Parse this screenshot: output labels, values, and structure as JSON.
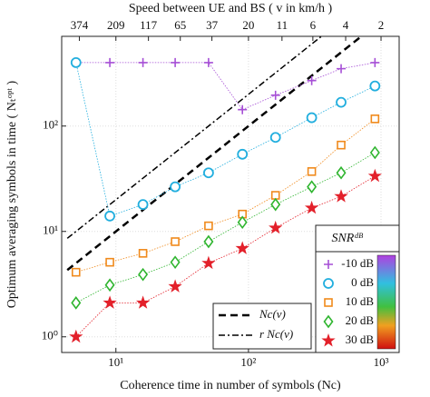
{
  "chart_data": {
    "type": "scatter",
    "xlabel": "Coherence time in number of symbols (Nc)",
    "ylabel": "Optimum averaging symbols in time ( Nₜᵒᵖᵗ )",
    "log_x": true,
    "log_y": true,
    "grid": true,
    "xlim": [
      3.9,
      1370
    ],
    "ylim": [
      0.71,
      710
    ],
    "xticks": [
      {
        "value": 10,
        "label": "10¹"
      },
      {
        "value": 100,
        "label": "10²"
      },
      {
        "value": 1000,
        "label": "10³"
      }
    ],
    "yticks": [
      {
        "value": 1,
        "label": "10⁰"
      },
      {
        "value": 10,
        "label": "10¹"
      },
      {
        "value": 100,
        "label": "10²"
      }
    ],
    "top_axis": {
      "label": "Speed between UE and BS ( v in km/h )",
      "ticks": [
        {
          "value": 5.3,
          "label": "374"
        },
        {
          "value": 10,
          "label": "209"
        },
        {
          "value": 17.6,
          "label": "117"
        },
        {
          "value": 30.6,
          "label": "65"
        },
        {
          "value": 53,
          "label": "37"
        },
        {
          "value": 100,
          "label": "20"
        },
        {
          "value": 179,
          "label": "11"
        },
        {
          "value": 306,
          "label": "6"
        },
        {
          "value": 541,
          "label": "4"
        },
        {
          "value": 1000,
          "label": "2"
        }
      ]
    },
    "legend_title": "SNRᵈᴮ",
    "x": [
      5,
      9,
      16,
      28,
      50,
      90,
      160,
      300,
      500,
      900
    ],
    "series": [
      {
        "name": "-10 dB",
        "color": "#a64fd6",
        "marker": "plus",
        "values": [
          400,
          400,
          400,
          400,
          400,
          143,
          196,
          270,
          350,
          400
        ]
      },
      {
        "name": "0 dB",
        "color": "#21aede",
        "marker": "circle",
        "values": [
          400,
          14,
          18,
          26.5,
          36,
          54,
          78,
          120,
          168,
          240
        ]
      },
      {
        "name": "10 dB",
        "color": "#f08a1c",
        "marker": "square",
        "values": [
          4.1,
          5.1,
          6.2,
          8,
          11.3,
          14.6,
          22,
          37,
          66,
          117
        ]
      },
      {
        "name": "20 dB",
        "color": "#2fb52f",
        "marker": "diamond",
        "values": [
          2.1,
          3.1,
          3.9,
          5.1,
          8,
          12.2,
          18,
          26.5,
          36,
          56
        ]
      },
      {
        "name": "30 dB",
        "color": "#e3202a",
        "marker": "star",
        "values": [
          1,
          2.1,
          2.1,
          3,
          5,
          6.9,
          10.8,
          16.7,
          21.5,
          33.5
        ]
      }
    ],
    "reference_lines": [
      {
        "name": "Nc(v)",
        "dash": "dashed",
        "x": [
          4.3,
          700
        ],
        "values": [
          4.3,
          700
        ]
      },
      {
        "name": "r Nc(v)",
        "dash": "dashdot",
        "x": [
          4.3,
          355
        ],
        "values": [
          8.6,
          710
        ]
      }
    ]
  }
}
